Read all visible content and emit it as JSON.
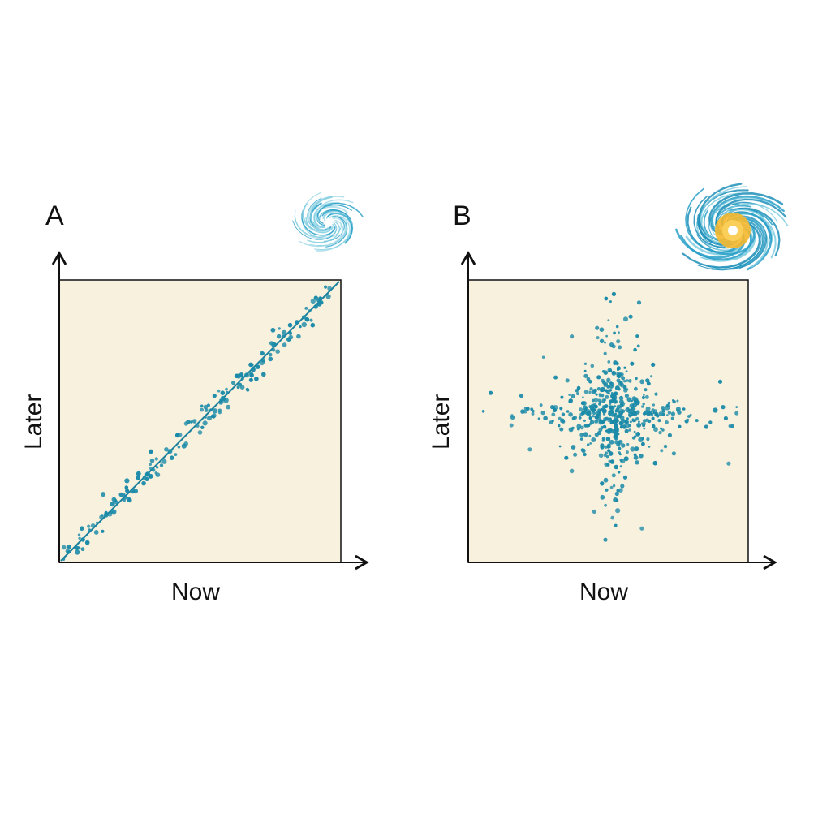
{
  "colors": {
    "plot_bg": "#f8f1de",
    "point": "#1a8aa8",
    "line": "#1a7f9c",
    "axis": "#111111",
    "swirl_blue": "#2aa0c8",
    "swirl_light": "#7fcde0",
    "swirl_core": "#f5b82e"
  },
  "panels": [
    {
      "letter": "A",
      "xlabel": "Now",
      "ylabel": "Later",
      "icon": "cyclone-icon-small"
    },
    {
      "letter": "B",
      "xlabel": "Now",
      "ylabel": "Later",
      "icon": "cyclone-icon-large-orange-core"
    }
  ],
  "chart_data": [
    {
      "type": "scatter",
      "title": "A",
      "xlabel": "Now",
      "ylabel": "Later",
      "xlim": [
        0,
        1
      ],
      "ylim": [
        0,
        1
      ],
      "grid": false,
      "description": "Strong positive correlation; points tightly clustered along the diagonal y = x with a fitted line",
      "trend_line": {
        "x": [
          0,
          1
        ],
        "y": [
          0,
          1
        ]
      },
      "points": {
        "x": [
          0.03,
          0.08,
          0.1,
          0.12,
          0.15,
          0.18,
          0.22,
          0.25,
          0.28,
          0.3,
          0.33,
          0.35,
          0.38,
          0.4,
          0.42,
          0.45,
          0.48,
          0.5,
          0.52,
          0.55,
          0.58,
          0.6,
          0.63,
          0.65,
          0.68,
          0.7,
          0.72,
          0.75,
          0.78,
          0.8,
          0.82,
          0.85,
          0.88,
          0.9,
          0.93,
          0.96
        ],
        "y": [
          0.04,
          0.12,
          0.07,
          0.13,
          0.16,
          0.17,
          0.24,
          0.22,
          0.3,
          0.28,
          0.36,
          0.31,
          0.4,
          0.37,
          0.45,
          0.42,
          0.5,
          0.46,
          0.55,
          0.52,
          0.6,
          0.55,
          0.66,
          0.62,
          0.7,
          0.65,
          0.74,
          0.72,
          0.8,
          0.77,
          0.84,
          0.8,
          0.86,
          0.84,
          0.92,
          0.97
        ]
      }
    },
    {
      "type": "scatter",
      "title": "B",
      "xlabel": "Now",
      "ylabel": "Later",
      "xlim": [
        0,
        1
      ],
      "ylim": [
        0,
        1
      ],
      "grid": false,
      "description": "No correlation; dense cloud centered near (0.5, 0.5) with cross/star-shaped spread along horizontal and vertical axes",
      "center": [
        0.52,
        0.52
      ],
      "points": {
        "x": [
          0.52,
          0.61,
          0.58,
          0.37,
          0.46,
          0.08,
          0.22,
          0.9,
          0.91,
          0.93,
          0.19,
          0.92,
          0.45,
          0.49,
          0.62,
          0.55,
          0.35,
          0.72,
          0.78,
          0.3,
          0.85,
          0.66,
          0.42,
          0.52
        ],
        "y": [
          0.95,
          0.92,
          0.87,
          0.8,
          0.83,
          0.6,
          0.4,
          0.64,
          0.55,
          0.35,
          0.59,
          0.51,
          0.18,
          0.08,
          0.12,
          0.27,
          0.37,
          0.45,
          0.5,
          0.55,
          0.48,
          0.7,
          0.66,
          0.5
        ]
      }
    }
  ]
}
